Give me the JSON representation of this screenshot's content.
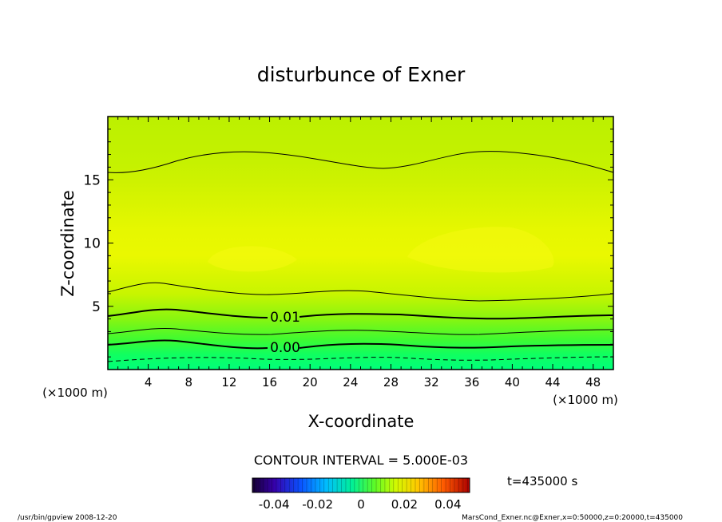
{
  "chart_data": {
    "type": "heatmap",
    "title": "disturbunce of Exner",
    "xlabel": "X-coordinate",
    "ylabel": "Z-coordinate",
    "x_unit": "(×1000 m)",
    "y_unit": "(×1000 m)",
    "xlim": [
      0,
      50
    ],
    "ylim": [
      0,
      20
    ],
    "x_ticks": [
      4,
      8,
      12,
      16,
      20,
      24,
      28,
      32,
      36,
      40,
      44,
      48
    ],
    "y_ticks": [
      5,
      10,
      15
    ],
    "contour_interval_text": "CONTOUR INTERVAL = 5.000E-03",
    "contour_labels": [
      {
        "text": "0.01",
        "x": 17,
        "z": 4.0
      },
      {
        "text": "0.00",
        "x": 17,
        "z": 1.7
      }
    ],
    "colorbar": {
      "min": -0.05,
      "max": 0.05,
      "tick_values": [
        -0.04,
        -0.02,
        0,
        0.02,
        0.04
      ],
      "tick_labels": [
        "-0.04",
        "-0.02",
        "0",
        "0.02",
        "0.04"
      ]
    },
    "time_label": "t=435000 s"
  },
  "footer": {
    "left": "/usr/bin/gpview  2008-12-20",
    "right": "MarsCond_Exner.nc@Exner,x=0:50000,z=0:20000,t=435000"
  },
  "colors": {
    "low": "#00ff80",
    "mid": "#aaf500",
    "high": "#ffff1a",
    "contour": "#000000"
  }
}
